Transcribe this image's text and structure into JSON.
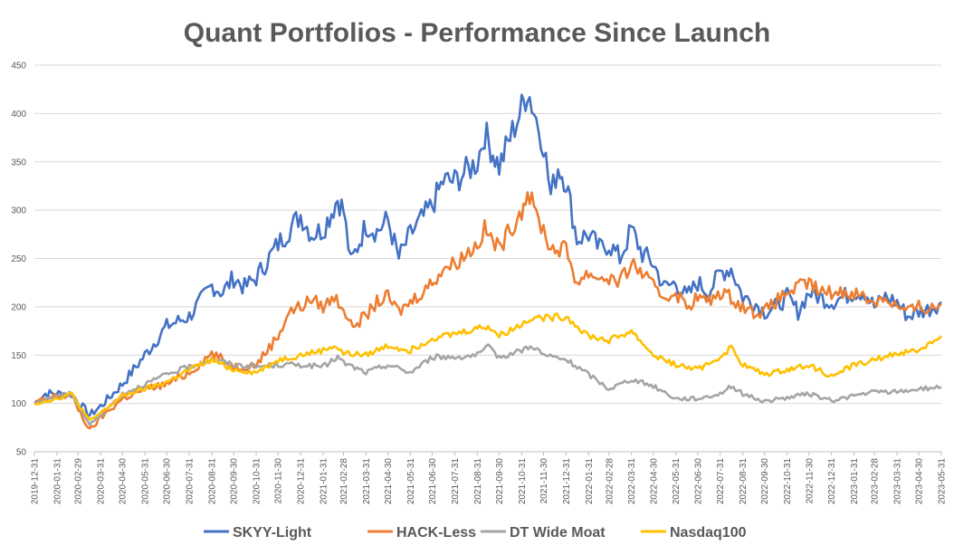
{
  "chart_data": {
    "type": "line",
    "title": "Quant Portfolios - Performance Since Launch",
    "xlabel": "",
    "ylabel": "",
    "ylim": [
      50,
      450
    ],
    "yticks": [
      50,
      100,
      150,
      200,
      250,
      300,
      350,
      400,
      450
    ],
    "x_tick_labels": [
      "2019-12-31",
      "2020-01-31",
      "2020-02-29",
      "2020-03-31",
      "2020-04-30",
      "2020-05-31",
      "2020-06-30",
      "2020-07-31",
      "2020-08-31",
      "2020-09-30",
      "2020-10-31",
      "2020-11-30",
      "2020-12-31",
      "2021-01-31",
      "2021-02-28",
      "2021-03-31",
      "2021-04-30",
      "2021-05-31",
      "2021-06-30",
      "2021-07-31",
      "2021-08-31",
      "2021-09-30",
      "2021-10-31",
      "2021-11-30",
      "2021-12-31",
      "2022-01-31",
      "2022-02-28",
      "2022-03-31",
      "2022-04-30",
      "2022-05-31",
      "2022-06-30",
      "2022-07-31",
      "2022-08-31",
      "2022-09-30",
      "2022-10-31",
      "2022-11-30",
      "2022-12-31",
      "2023-01-31",
      "2023-02-28",
      "2023-03-31",
      "2023-04-30",
      "2023-05-31"
    ],
    "grid": true,
    "legend_position": "bottom",
    "series": [
      {
        "name": "SKYY-Light",
        "color": "#4472c4",
        "points": [
          [
            "2019-12-31",
            100
          ],
          [
            "2020-01-15",
            110
          ],
          [
            "2020-02-20",
            110
          ],
          [
            "2020-03-16",
            88
          ],
          [
            "2020-03-31",
            97
          ],
          [
            "2020-04-30",
            120
          ],
          [
            "2020-05-31",
            150
          ],
          [
            "2020-06-30",
            180
          ],
          [
            "2020-07-31",
            190
          ],
          [
            "2020-08-31",
            222
          ],
          [
            "2020-09-15",
            215
          ],
          [
            "2020-09-30",
            230
          ],
          [
            "2020-10-15",
            220
          ],
          [
            "2020-10-31",
            230
          ],
          [
            "2020-11-30",
            265
          ],
          [
            "2020-12-31",
            295
          ],
          [
            "2021-01-15",
            275
          ],
          [
            "2021-01-31",
            280
          ],
          [
            "2021-02-20",
            312
          ],
          [
            "2021-02-28",
            300
          ],
          [
            "2021-03-10",
            245
          ],
          [
            "2021-03-31",
            285
          ],
          [
            "2021-04-15",
            278
          ],
          [
            "2021-04-30",
            290
          ],
          [
            "2021-05-15",
            250
          ],
          [
            "2021-05-31",
            275
          ],
          [
            "2021-06-30",
            305
          ],
          [
            "2021-07-15",
            330
          ],
          [
            "2021-07-31",
            330
          ],
          [
            "2021-08-31",
            350
          ],
          [
            "2021-09-10",
            380
          ],
          [
            "2021-09-30",
            345
          ],
          [
            "2021-10-15",
            375
          ],
          [
            "2021-10-31",
            405
          ],
          [
            "2021-11-08",
            425
          ],
          [
            "2021-11-20",
            395
          ],
          [
            "2021-11-30",
            370
          ],
          [
            "2021-12-10",
            315
          ],
          [
            "2021-12-20",
            345
          ],
          [
            "2021-12-31",
            330
          ],
          [
            "2022-01-15",
            270
          ],
          [
            "2022-01-31",
            275
          ],
          [
            "2022-02-15",
            260
          ],
          [
            "2022-02-28",
            265
          ],
          [
            "2022-03-15",
            250
          ],
          [
            "2022-03-31",
            280
          ],
          [
            "2022-04-15",
            255
          ],
          [
            "2022-04-30",
            245
          ],
          [
            "2022-05-15",
            220
          ],
          [
            "2022-05-31",
            225
          ],
          [
            "2022-06-15",
            210
          ],
          [
            "2022-06-30",
            225
          ],
          [
            "2022-07-15",
            215
          ],
          [
            "2022-07-31",
            235
          ],
          [
            "2022-08-15",
            240
          ],
          [
            "2022-08-31",
            210
          ],
          [
            "2022-09-15",
            205
          ],
          [
            "2022-09-30",
            195
          ],
          [
            "2022-10-15",
            200
          ],
          [
            "2022-10-31",
            210
          ],
          [
            "2022-11-15",
            195
          ],
          [
            "2022-11-30",
            215
          ],
          [
            "2022-12-15",
            210
          ],
          [
            "2022-12-31",
            205
          ],
          [
            "2023-01-31",
            215
          ],
          [
            "2023-02-15",
            215
          ],
          [
            "2023-02-28",
            200
          ],
          [
            "2023-03-15",
            210
          ],
          [
            "2023-03-31",
            205
          ],
          [
            "2023-04-15",
            190
          ],
          [
            "2023-04-30",
            195
          ],
          [
            "2023-05-15",
            198
          ],
          [
            "2023-05-31",
            205
          ]
        ]
      },
      {
        "name": "HACK-Less",
        "color": "#ed7d31",
        "points": [
          [
            "2019-12-31",
            100
          ],
          [
            "2020-01-31",
            108
          ],
          [
            "2020-02-20",
            108
          ],
          [
            "2020-03-16",
            72
          ],
          [
            "2020-03-31",
            85
          ],
          [
            "2020-04-30",
            105
          ],
          [
            "2020-05-31",
            115
          ],
          [
            "2020-06-30",
            120
          ],
          [
            "2020-07-31",
            132
          ],
          [
            "2020-08-31",
            152
          ],
          [
            "2020-09-30",
            138
          ],
          [
            "2020-10-31",
            140
          ],
          [
            "2020-11-30",
            170
          ],
          [
            "2020-12-15",
            195
          ],
          [
            "2020-12-31",
            200
          ],
          [
            "2021-01-15",
            208
          ],
          [
            "2021-01-31",
            200
          ],
          [
            "2021-02-15",
            210
          ],
          [
            "2021-02-28",
            200
          ],
          [
            "2021-03-10",
            180
          ],
          [
            "2021-03-31",
            190
          ],
          [
            "2021-04-15",
            205
          ],
          [
            "2021-04-30",
            210
          ],
          [
            "2021-05-15",
            195
          ],
          [
            "2021-05-31",
            205
          ],
          [
            "2021-06-30",
            225
          ],
          [
            "2021-07-15",
            240
          ],
          [
            "2021-07-31",
            245
          ],
          [
            "2021-08-31",
            265
          ],
          [
            "2021-09-10",
            280
          ],
          [
            "2021-09-30",
            260
          ],
          [
            "2021-10-15",
            280
          ],
          [
            "2021-10-31",
            300
          ],
          [
            "2021-11-08",
            320
          ],
          [
            "2021-11-20",
            295
          ],
          [
            "2021-11-30",
            280
          ],
          [
            "2021-12-10",
            260
          ],
          [
            "2021-12-31",
            260
          ],
          [
            "2022-01-15",
            225
          ],
          [
            "2022-01-31",
            235
          ],
          [
            "2022-02-15",
            230
          ],
          [
            "2022-02-28",
            230
          ],
          [
            "2022-03-15",
            225
          ],
          [
            "2022-03-31",
            245
          ],
          [
            "2022-04-15",
            235
          ],
          [
            "2022-04-30",
            220
          ],
          [
            "2022-05-15",
            210
          ],
          [
            "2022-05-31",
            215
          ],
          [
            "2022-06-15",
            200
          ],
          [
            "2022-06-30",
            210
          ],
          [
            "2022-07-15",
            205
          ],
          [
            "2022-07-31",
            215
          ],
          [
            "2022-08-15",
            210
          ],
          [
            "2022-08-31",
            200
          ],
          [
            "2022-09-15",
            195
          ],
          [
            "2022-09-30",
            195
          ],
          [
            "2022-10-15",
            205
          ],
          [
            "2022-10-31",
            215
          ],
          [
            "2022-11-15",
            220
          ],
          [
            "2022-11-30",
            225
          ],
          [
            "2022-12-15",
            215
          ],
          [
            "2022-12-31",
            215
          ],
          [
            "2023-01-31",
            215
          ],
          [
            "2023-02-15",
            210
          ],
          [
            "2023-02-28",
            205
          ],
          [
            "2023-03-15",
            210
          ],
          [
            "2023-03-31",
            200
          ],
          [
            "2023-04-15",
            195
          ],
          [
            "2023-04-30",
            200
          ],
          [
            "2023-05-15",
            198
          ],
          [
            "2023-05-31",
            203
          ]
        ]
      },
      {
        "name": "DT Wide Moat",
        "color": "#a5a5a5",
        "points": [
          [
            "2019-12-31",
            100
          ],
          [
            "2020-01-31",
            108
          ],
          [
            "2020-02-20",
            110
          ],
          [
            "2020-03-16",
            78
          ],
          [
            "2020-03-31",
            88
          ],
          [
            "2020-04-30",
            110
          ],
          [
            "2020-05-31",
            120
          ],
          [
            "2020-06-30",
            130
          ],
          [
            "2020-07-31",
            138
          ],
          [
            "2020-08-31",
            146
          ],
          [
            "2020-09-30",
            140
          ],
          [
            "2020-10-31",
            138
          ],
          [
            "2020-11-30",
            140
          ],
          [
            "2020-12-31",
            140
          ],
          [
            "2021-01-31",
            138
          ],
          [
            "2021-02-20",
            148
          ],
          [
            "2021-02-28",
            142
          ],
          [
            "2021-03-31",
            132
          ],
          [
            "2021-04-30",
            140
          ],
          [
            "2021-05-31",
            132
          ],
          [
            "2021-06-30",
            148
          ],
          [
            "2021-07-31",
            148
          ],
          [
            "2021-08-31",
            150
          ],
          [
            "2021-09-15",
            158
          ],
          [
            "2021-09-30",
            148
          ],
          [
            "2021-10-31",
            155
          ],
          [
            "2021-11-15",
            160
          ],
          [
            "2021-11-30",
            150
          ],
          [
            "2021-12-31",
            145
          ],
          [
            "2022-01-31",
            130
          ],
          [
            "2022-02-28",
            115
          ],
          [
            "2022-03-31",
            125
          ],
          [
            "2022-04-30",
            118
          ],
          [
            "2022-05-31",
            105
          ],
          [
            "2022-06-30",
            105
          ],
          [
            "2022-07-31",
            110
          ],
          [
            "2022-08-15",
            118
          ],
          [
            "2022-08-31",
            110
          ],
          [
            "2022-09-30",
            102
          ],
          [
            "2022-10-31",
            106
          ],
          [
            "2022-11-30",
            110
          ],
          [
            "2022-12-31",
            103
          ],
          [
            "2023-01-31",
            108
          ],
          [
            "2023-02-28",
            112
          ],
          [
            "2023-03-31",
            112
          ],
          [
            "2023-04-30",
            115
          ],
          [
            "2023-05-31",
            117
          ]
        ]
      },
      {
        "name": "Nasdaq100",
        "color": "#ffc000",
        "points": [
          [
            "2019-12-31",
            100
          ],
          [
            "2020-01-31",
            105
          ],
          [
            "2020-02-20",
            110
          ],
          [
            "2020-03-16",
            82
          ],
          [
            "2020-03-31",
            90
          ],
          [
            "2020-04-30",
            108
          ],
          [
            "2020-05-31",
            115
          ],
          [
            "2020-06-30",
            122
          ],
          [
            "2020-07-31",
            135
          ],
          [
            "2020-08-31",
            145
          ],
          [
            "2020-09-30",
            135
          ],
          [
            "2020-10-31",
            132
          ],
          [
            "2020-11-30",
            145
          ],
          [
            "2020-12-31",
            150
          ],
          [
            "2021-01-31",
            155
          ],
          [
            "2021-02-15",
            160
          ],
          [
            "2021-02-28",
            152
          ],
          [
            "2021-03-31",
            150
          ],
          [
            "2021-04-30",
            160
          ],
          [
            "2021-05-31",
            155
          ],
          [
            "2021-06-30",
            168
          ],
          [
            "2021-07-31",
            172
          ],
          [
            "2021-08-31",
            178
          ],
          [
            "2021-09-15",
            180
          ],
          [
            "2021-09-30",
            170
          ],
          [
            "2021-10-31",
            182
          ],
          [
            "2021-11-15",
            190
          ],
          [
            "2021-11-30",
            188
          ],
          [
            "2021-12-31",
            190
          ],
          [
            "2022-01-31",
            170
          ],
          [
            "2022-02-28",
            165
          ],
          [
            "2022-03-31",
            175
          ],
          [
            "2022-04-30",
            150
          ],
          [
            "2022-05-31",
            140
          ],
          [
            "2022-06-30",
            135
          ],
          [
            "2022-07-31",
            148
          ],
          [
            "2022-08-15",
            158
          ],
          [
            "2022-08-31",
            140
          ],
          [
            "2022-09-30",
            130
          ],
          [
            "2022-10-31",
            135
          ],
          [
            "2022-11-30",
            140
          ],
          [
            "2022-12-31",
            128
          ],
          [
            "2023-01-31",
            140
          ],
          [
            "2023-02-28",
            145
          ],
          [
            "2023-03-31",
            152
          ],
          [
            "2023-04-30",
            155
          ],
          [
            "2023-05-31",
            170
          ]
        ]
      }
    ]
  }
}
